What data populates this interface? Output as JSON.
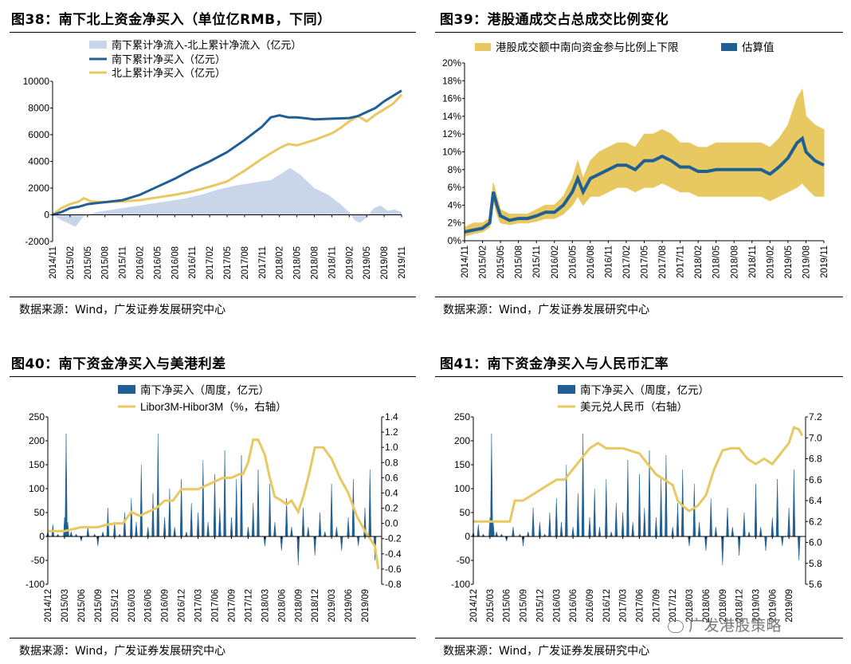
{
  "colors": {
    "blue": "#1f5f94",
    "gold": "#e8c860",
    "lightblue": "#c9d6ea",
    "gray": "#777777"
  },
  "footnote": "数据来源：Wind，广发证券发展研究中心",
  "watermark": "广发港股策略",
  "chart_data": [
    {
      "id": "fig38",
      "type": "area+line",
      "title": "图38：南下北上资金净买入（单位亿RMB，下同）",
      "legend": [
        "南下累计净流入-北上累计净流入（亿元）",
        "南下累计净买入（亿元）",
        "北上累计净买入（亿元）"
      ],
      "x_ticks": [
        "2014/11",
        "2015/02",
        "2015/05",
        "2015/08",
        "2015/11",
        "2016/02",
        "2016/05",
        "2016/08",
        "2016/11",
        "2017/02",
        "2017/05",
        "2017/08",
        "2017/11",
        "2018/02",
        "2018/05",
        "2018/08",
        "2018/11",
        "2019/02",
        "2019/05",
        "2019/08",
        "2019/11"
      ],
      "y_ticks": [
        "10000",
        "8000",
        "6000",
        "4000",
        "2000",
        "0",
        "-2000"
      ],
      "ylim": [
        -2000,
        10000
      ],
      "series": [
        {
          "name": "南下累计净流入-北上累计净流入（亿元）",
          "kind": "area",
          "x": [
            0,
            0.5,
            1,
            1.3,
            1.8,
            2.5,
            3.5,
            4.5,
            5.5,
            6.5,
            7.5,
            8.5,
            9.5,
            10.5,
            11.5,
            12.5,
            13,
            13.6,
            14.2,
            15,
            15.8,
            16.5,
            17,
            17.3,
            17.6,
            18,
            18.4,
            18.8,
            19.2,
            19.6,
            20
          ],
          "values": [
            0,
            -400,
            -700,
            -900,
            -100,
            200,
            400,
            600,
            800,
            1000,
            1200,
            1500,
            1900,
            2200,
            2400,
            2600,
            3000,
            3500,
            3000,
            2000,
            1500,
            800,
            200,
            -400,
            -600,
            -200,
            500,
            700,
            300,
            400,
            200
          ]
        },
        {
          "name": "南下累计净买入（亿元）",
          "kind": "line",
          "x": [
            0,
            0.5,
            1,
            1.5,
            2,
            3,
            4,
            5,
            6,
            7,
            8,
            9,
            10,
            11,
            12,
            12.5,
            13,
            13.5,
            14,
            15,
            16,
            17,
            17.5,
            18,
            18.5,
            19,
            19.5,
            20
          ],
          "values": [
            0,
            200,
            500,
            600,
            800,
            950,
            1100,
            1500,
            2100,
            2700,
            3400,
            4000,
            4700,
            5600,
            6600,
            7300,
            7450,
            7300,
            7300,
            7150,
            7200,
            7250,
            7400,
            7700,
            8000,
            8500,
            8900,
            9300
          ]
        },
        {
          "name": "北上累计净买入（亿元）",
          "kind": "line",
          "x": [
            0,
            0.5,
            1,
            1.5,
            1.8,
            2.2,
            3,
            4,
            5,
            6,
            7,
            8,
            9,
            10,
            11,
            12,
            13,
            13.5,
            14,
            15,
            16,
            16.5,
            17,
            17.5,
            18,
            18.5,
            19,
            19.5,
            20
          ],
          "values": [
            0,
            500,
            800,
            1000,
            1250,
            1000,
            950,
            1000,
            1100,
            1300,
            1500,
            1750,
            2100,
            2500,
            3300,
            4200,
            5000,
            5300,
            5200,
            5600,
            6100,
            6500,
            7000,
            7400,
            7000,
            7500,
            7900,
            8300,
            9000
          ]
        }
      ]
    },
    {
      "id": "fig39",
      "type": "band+line",
      "title": "图39：港股通成交占总成交比例变化",
      "legend": [
        "港股成交额中南向资金参与比例上下限",
        "估算值"
      ],
      "x_ticks": [
        "2014/11",
        "2015/02",
        "2015/05",
        "2015/08",
        "2015/11",
        "2016/02",
        "2016/05",
        "2016/08",
        "2016/11",
        "2017/02",
        "2017/05",
        "2017/08",
        "2017/11",
        "2018/02",
        "2018/05",
        "2018/08",
        "2018/11",
        "2019/02",
        "2019/05",
        "2019/08",
        "2019/11"
      ],
      "y_ticks": [
        "20%",
        "18%",
        "16%",
        "14%",
        "12%",
        "10%",
        "8%",
        "6%",
        "4%",
        "2%",
        "0%"
      ],
      "ylim": [
        0,
        20
      ],
      "series": [
        {
          "name": "港股成交额中南向资金参与比例上下限",
          "kind": "band",
          "x": [
            0,
            0.5,
            1,
            1.4,
            1.6,
            1.8,
            2,
            2.5,
            3,
            3.5,
            4,
            4.5,
            5,
            5.5,
            6,
            6.3,
            6.6,
            7,
            7.5,
            8,
            8.5,
            9,
            9.5,
            10,
            10.5,
            11,
            11.5,
            12,
            12.5,
            13,
            13.5,
            14,
            14.5,
            15,
            15.5,
            16,
            16.5,
            17,
            17.5,
            18,
            18.5,
            18.8,
            19,
            19.5,
            20
          ],
          "low": [
            0.5,
            0.8,
            1,
            1.5,
            4.5,
            3,
            2,
            1.8,
            2,
            2,
            2.2,
            2.5,
            2.5,
            3,
            4,
            5,
            4,
            5,
            5,
            5.5,
            6,
            6,
            5.5,
            6,
            6,
            6.5,
            6,
            5.5,
            5.5,
            5,
            5,
            5,
            5,
            5,
            5,
            5,
            5,
            4.5,
            5,
            5.5,
            6,
            6.5,
            6,
            5,
            5
          ],
          "high": [
            1.5,
            2,
            2,
            2.5,
            6.5,
            5,
            3.5,
            3,
            3,
            3,
            3.5,
            4,
            4,
            5,
            7,
            9,
            7,
            9,
            10,
            10.5,
            11,
            11,
            10.5,
            12,
            12,
            12.5,
            12,
            11,
            11,
            10.5,
            10.5,
            11,
            11,
            11,
            11,
            11,
            11,
            10.5,
            11.5,
            13,
            16,
            17,
            14,
            13,
            12.5
          ]
        },
        {
          "name": "估算值",
          "kind": "line",
          "x": [
            0,
            0.5,
            1,
            1.4,
            1.6,
            1.8,
            2,
            2.5,
            3,
            3.5,
            4,
            4.5,
            5,
            5.5,
            6,
            6.3,
            6.6,
            7,
            7.5,
            8,
            8.5,
            9,
            9.5,
            10,
            10.5,
            11,
            11.5,
            12,
            12.5,
            13,
            13.5,
            14,
            14.5,
            15,
            15.5,
            16,
            16.5,
            17,
            17.5,
            18,
            18.5,
            18.8,
            19,
            19.5,
            20
          ],
          "values": [
            1,
            1.2,
            1.4,
            2,
            5.5,
            4,
            2.8,
            2.3,
            2.5,
            2.5,
            2.8,
            3.2,
            3.2,
            4,
            5.5,
            7,
            5.5,
            7,
            7.5,
            8,
            8.5,
            8.5,
            8,
            9,
            9,
            9.5,
            9,
            8.3,
            8.3,
            7.8,
            7.8,
            8,
            8,
            8,
            8,
            8,
            8,
            7.5,
            8.3,
            9.3,
            11,
            11.5,
            10,
            9,
            8.5
          ]
        }
      ]
    },
    {
      "id": "fig40",
      "type": "area+line",
      "title": "图40：南下资金净买入与美港利差",
      "legend": [
        "南下净买入（周度，亿元）",
        "Libor3M-Hibor3M（%，右轴）"
      ],
      "x_ticks": [
        "2014/12",
        "2015/03",
        "2015/06",
        "2015/09",
        "2015/12",
        "2016/03",
        "2016/06",
        "2016/09",
        "2016/12",
        "2017/03",
        "2017/06",
        "2017/09",
        "2017/12",
        "2018/03",
        "2018/06",
        "2018/09",
        "2018/12",
        "2019/03",
        "2019/06",
        "2019/09"
      ],
      "y_ticks": [
        "250",
        "200",
        "150",
        "100",
        "50",
        "0",
        "-50",
        "-100"
      ],
      "y2_ticks": [
        "1.4",
        "1.2",
        "1.0",
        "0.8",
        "0.6",
        "0.4",
        "0.2",
        "0.0",
        "-0.2",
        "-0.4",
        "-0.6",
        "-0.8"
      ],
      "ylim": [
        -100,
        250
      ],
      "y2lim": [
        -0.8,
        1.4
      ],
      "series": [
        {
          "name": "南下净买入（周度，亿元）",
          "kind": "area",
          "x": [
            0,
            0.3,
            0.6,
            1,
            1.1,
            1.2,
            1.4,
            1.7,
            2,
            2.4,
            2.8,
            3,
            3.3,
            3.6,
            4,
            4.3,
            4.6,
            5,
            5.3,
            5.6,
            6,
            6.3,
            6.6,
            7,
            7.3,
            7.6,
            8,
            8.3,
            8.6,
            9,
            9.3,
            9.6,
            10,
            10.3,
            10.6,
            11,
            11.3,
            11.6,
            12,
            12.3,
            12.6,
            13,
            13.3,
            13.6,
            14,
            14.3,
            14.6,
            15,
            15.3,
            15.6,
            16,
            16.3,
            16.6,
            17,
            17.3,
            17.6,
            18,
            18.3,
            18.6,
            19,
            19.3,
            19.6
          ],
          "values": [
            10,
            25,
            5,
            40,
            215,
            30,
            10,
            5,
            -10,
            20,
            5,
            -20,
            10,
            60,
            30,
            5,
            50,
            80,
            30,
            150,
            20,
            90,
            215,
            40,
            100,
            20,
            120,
            10,
            70,
            50,
            160,
            30,
            130,
            60,
            180,
            40,
            120,
            170,
            20,
            70,
            140,
            -20,
            110,
            30,
            -30,
            80,
            20,
            -60,
            60,
            20,
            -40,
            50,
            10,
            110,
            20,
            -30,
            40,
            120,
            -20,
            60,
            140,
            -50
          ]
        },
        {
          "name": "Libor3M-Hibor3M（%，右轴）",
          "kind": "line",
          "x": [
            0,
            1,
            2,
            3,
            3.5,
            4,
            4.5,
            5,
            5.5,
            6,
            6.5,
            7,
            7.5,
            8,
            8.5,
            9,
            9.5,
            10,
            10.5,
            11,
            11.5,
            11.7,
            12,
            12.3,
            12.6,
            13,
            13.3,
            13.6,
            14,
            14.3,
            14.6,
            15,
            15.3,
            15.6,
            16,
            16.5,
            17,
            17.5,
            18,
            18.5,
            19,
            19.3,
            19.6,
            19.8
          ],
          "values": [
            -0.1,
            -0.1,
            -0.05,
            -0.05,
            -0.02,
            0.0,
            0.0,
            0.15,
            0.1,
            0.15,
            0.2,
            0.3,
            0.3,
            0.45,
            0.45,
            0.45,
            0.5,
            0.55,
            0.6,
            0.6,
            0.65,
            0.65,
            0.8,
            1.1,
            1.1,
            0.9,
            0.6,
            0.35,
            0.3,
            0.25,
            0.3,
            0.15,
            0.35,
            0.6,
            1.0,
            1.0,
            0.85,
            0.6,
            0.4,
            0.1,
            -0.1,
            -0.2,
            -0.3,
            -0.6
          ]
        }
      ]
    },
    {
      "id": "fig41",
      "type": "area+line",
      "title": "图41：南下资金净买入与人民币汇率",
      "legend": [
        "南下净买入（周度，亿元）",
        "美元兑人民币（右轴）"
      ],
      "x_ticks": [
        "2014/12",
        "2015/03",
        "2015/06",
        "2015/09",
        "2015/12",
        "2016/03",
        "2016/06",
        "2016/09",
        "2016/12",
        "2017/03",
        "2017/06",
        "2017/09",
        "2017/12",
        "2018/03",
        "2018/06",
        "2018/09",
        "2018/12",
        "2019/03",
        "2019/06",
        "2019/09"
      ],
      "y_ticks": [
        "250",
        "200",
        "150",
        "100",
        "50",
        "0",
        "-50",
        "-100"
      ],
      "y2_ticks": [
        "7.2",
        "7.0",
        "6.8",
        "6.6",
        "6.4",
        "6.2",
        "6.0",
        "5.8",
        "5.6"
      ],
      "ylim": [
        -100,
        250
      ],
      "y2lim": [
        5.6,
        7.2
      ],
      "series": [
        {
          "name": "南下净买入（周度，亿元）",
          "kind": "area",
          "x": [
            0,
            0.3,
            0.6,
            1,
            1.1,
            1.2,
            1.4,
            1.7,
            2,
            2.4,
            2.8,
            3,
            3.3,
            3.6,
            4,
            4.3,
            4.6,
            5,
            5.3,
            5.6,
            6,
            6.3,
            6.6,
            7,
            7.3,
            7.6,
            8,
            8.3,
            8.6,
            9,
            9.3,
            9.6,
            10,
            10.3,
            10.6,
            11,
            11.3,
            11.6,
            12,
            12.3,
            12.6,
            13,
            13.3,
            13.6,
            14,
            14.3,
            14.6,
            15,
            15.3,
            15.6,
            16,
            16.3,
            16.6,
            17,
            17.3,
            17.6,
            18,
            18.3,
            18.6,
            19,
            19.3,
            19.6
          ],
          "values": [
            10,
            25,
            5,
            40,
            215,
            30,
            10,
            5,
            -10,
            20,
            5,
            -20,
            10,
            60,
            30,
            5,
            50,
            80,
            30,
            150,
            20,
            90,
            215,
            40,
            100,
            20,
            120,
            10,
            70,
            50,
            160,
            30,
            130,
            60,
            180,
            40,
            120,
            170,
            20,
            70,
            140,
            -20,
            110,
            30,
            -30,
            80,
            20,
            -60,
            60,
            20,
            -40,
            50,
            10,
            110,
            20,
            -30,
            40,
            120,
            -20,
            60,
            140,
            -50
          ]
        },
        {
          "name": "美元兑人民币（右轴）",
          "kind": "line",
          "x": [
            0,
            1,
            1.5,
            2.2,
            2.5,
            3,
            4,
            5,
            5.5,
            6,
            6.5,
            7,
            7.5,
            8,
            8.5,
            9,
            10,
            10.5,
            11,
            11.5,
            12,
            12.3,
            12.6,
            13,
            13.5,
            14,
            14.5,
            15,
            15.5,
            16,
            16.5,
            17,
            17.5,
            18,
            18.5,
            19,
            19.3,
            19.6,
            19.8
          ],
          "values": [
            6.2,
            6.2,
            6.2,
            6.2,
            6.4,
            6.4,
            6.5,
            6.6,
            6.6,
            6.7,
            6.8,
            6.9,
            6.95,
            6.9,
            6.9,
            6.9,
            6.85,
            6.75,
            6.65,
            6.6,
            6.55,
            6.4,
            6.35,
            6.3,
            6.35,
            6.45,
            6.7,
            6.88,
            6.9,
            6.9,
            6.8,
            6.75,
            6.8,
            6.75,
            6.85,
            6.95,
            7.1,
            7.08,
            7.02
          ]
        }
      ]
    }
  ]
}
